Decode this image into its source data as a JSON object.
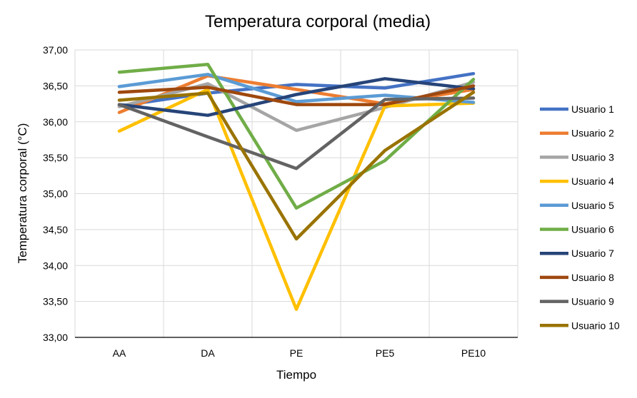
{
  "chart_data": {
    "type": "line",
    "title": "Temperatura corporal (media)",
    "xlabel": "Tiempo",
    "ylabel": "Temperatura corporal (°C)",
    "categories": [
      "AA",
      "DA",
      "PE",
      "PE5",
      "PE10"
    ],
    "ylim": [
      33.0,
      37.0
    ],
    "yticks": [
      "33,00",
      "33,50",
      "34,00",
      "34,50",
      "35,00",
      "35,50",
      "36,00",
      "36,50",
      "37,00"
    ],
    "grid": true,
    "legend_position": "right",
    "series": [
      {
        "name": "Usuario 1",
        "color": "#4472C4",
        "values": [
          36.22,
          36.4,
          36.52,
          36.47,
          36.67
        ]
      },
      {
        "name": "Usuario 2",
        "color": "#ED7D31",
        "values": [
          36.13,
          36.64,
          36.45,
          36.25,
          36.45
        ]
      },
      {
        "name": "Usuario 3",
        "color": "#A5A5A5",
        "values": [
          36.21,
          36.53,
          35.88,
          36.2,
          36.55
        ]
      },
      {
        "name": "Usuario 4",
        "color": "#FFC000",
        "values": [
          35.87,
          36.45,
          33.39,
          36.22,
          36.26
        ]
      },
      {
        "name": "Usuario 5",
        "color": "#5B9BD5",
        "values": [
          36.49,
          36.66,
          36.28,
          36.37,
          36.27
        ]
      },
      {
        "name": "Usuario 6",
        "color": "#70AD47",
        "values": [
          36.69,
          36.8,
          34.8,
          35.46,
          36.59
        ]
      },
      {
        "name": "Usuario 7",
        "color": "#264478",
        "values": [
          36.24,
          36.09,
          36.38,
          36.6,
          36.46
        ]
      },
      {
        "name": "Usuario 8",
        "color": "#9E480E",
        "values": [
          36.41,
          36.48,
          36.24,
          36.24,
          36.5
        ]
      },
      {
        "name": "Usuario 9",
        "color": "#636363",
        "values": [
          36.24,
          35.79,
          35.35,
          36.31,
          36.33
        ]
      },
      {
        "name": "Usuario 10",
        "color": "#997300",
        "values": [
          36.3,
          36.4,
          34.37,
          35.6,
          36.41
        ]
      }
    ]
  }
}
